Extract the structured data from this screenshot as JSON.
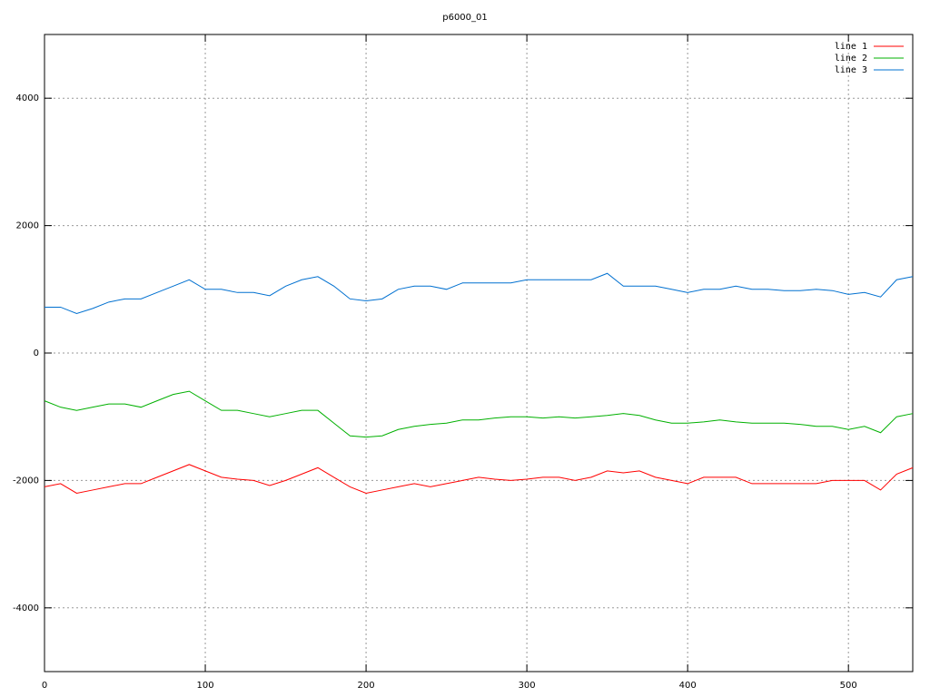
{
  "chart_data": {
    "type": "line",
    "title": "p6000_01",
    "x": [
      0,
      10,
      20,
      30,
      40,
      50,
      60,
      70,
      80,
      90,
      100,
      110,
      120,
      130,
      140,
      150,
      160,
      170,
      180,
      190,
      200,
      210,
      220,
      230,
      240,
      250,
      260,
      270,
      280,
      290,
      300,
      310,
      320,
      330,
      340,
      350,
      360,
      370,
      380,
      390,
      400,
      410,
      420,
      430,
      440,
      450,
      460,
      470,
      480,
      490,
      500,
      510,
      520,
      530,
      540
    ],
    "series": [
      {
        "name": "line 1",
        "color": "#ff0000",
        "values": [
          -2100,
          -2050,
          -2200,
          -2150,
          -2100,
          -2050,
          -2050,
          -1950,
          -1850,
          -1750,
          -1850,
          -1950,
          -1980,
          -2000,
          -2080,
          -2000,
          -1900,
          -1800,
          -1950,
          -2100,
          -2200,
          -2150,
          -2100,
          -2050,
          -2100,
          -2050,
          -2000,
          -1950,
          -1980,
          -2000,
          -1980,
          -1950,
          -1950,
          -2000,
          -1950,
          -1850,
          -1880,
          -1850,
          -1950,
          -2000,
          -2050,
          -1950,
          -1950,
          -1950,
          -2050,
          -2050,
          -2050,
          -2050,
          -2050,
          -2000,
          -2000,
          -2000,
          -2150,
          -1900,
          -1800
        ]
      },
      {
        "name": "line 2",
        "color": "#00b000",
        "values": [
          -750,
          -850,
          -900,
          -850,
          -800,
          -800,
          -850,
          -750,
          -650,
          -600,
          -750,
          -900,
          -900,
          -950,
          -1000,
          -950,
          -900,
          -900,
          -1100,
          -1300,
          -1320,
          -1300,
          -1200,
          -1150,
          -1120,
          -1100,
          -1050,
          -1050,
          -1020,
          -1000,
          -1000,
          -1020,
          -1000,
          -1020,
          -1000,
          -980,
          -950,
          -980,
          -1050,
          -1100,
          -1100,
          -1080,
          -1050,
          -1080,
          -1100,
          -1100,
          -1100,
          -1120,
          -1150,
          -1150,
          -1200,
          -1150,
          -1250,
          -1000,
          -950
        ]
      },
      {
        "name": "line 3",
        "color": "#0070d0",
        "values": [
          720,
          720,
          620,
          700,
          800,
          850,
          850,
          950,
          1050,
          1150,
          1000,
          1000,
          950,
          950,
          900,
          1050,
          1150,
          1200,
          1050,
          850,
          820,
          850,
          1000,
          1050,
          1050,
          1000,
          1100,
          1100,
          1100,
          1100,
          1150,
          1150,
          1150,
          1150,
          1150,
          1250,
          1050,
          1050,
          1050,
          1000,
          950,
          1000,
          1000,
          1050,
          1000,
          1000,
          980,
          980,
          1000,
          980,
          920,
          950,
          880,
          1150,
          1200
        ]
      }
    ],
    "xlim": [
      0,
      540
    ],
    "xticks": [
      0,
      100,
      200,
      300,
      400,
      500
    ],
    "ylim": [
      -5000,
      5000
    ],
    "yticks": [
      -4000,
      -2000,
      0,
      2000,
      4000
    ],
    "grid": true,
    "legend": "top-right"
  }
}
